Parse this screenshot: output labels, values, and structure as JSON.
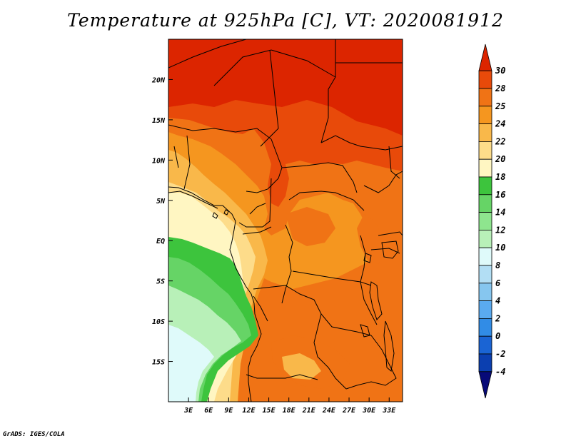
{
  "title": "Temperature at 925hPa [C], VT: 2020081912",
  "credit": "GrADS: IGES/COLA",
  "map": {
    "region": "Central Africa",
    "projection": "lat-lon",
    "lon_range": [
      0,
      35
    ],
    "lat_range": [
      -20,
      25
    ],
    "lon_ticks": [
      {
        "value": 3,
        "label": "3E"
      },
      {
        "value": 6,
        "label": "6E"
      },
      {
        "value": 9,
        "label": "9E"
      },
      {
        "value": 12,
        "label": "12E"
      },
      {
        "value": 15,
        "label": "15E"
      },
      {
        "value": 18,
        "label": "18E"
      },
      {
        "value": 21,
        "label": "21E"
      },
      {
        "value": 24,
        "label": "24E"
      },
      {
        "value": 27,
        "label": "27E"
      },
      {
        "value": 30,
        "label": "30E"
      },
      {
        "value": 33,
        "label": "33E"
      }
    ],
    "lat_ticks": [
      {
        "value": 20,
        "label": "20N"
      },
      {
        "value": 15,
        "label": "15N"
      },
      {
        "value": 10,
        "label": "10N"
      },
      {
        "value": 5,
        "label": "5N"
      },
      {
        "value": 0,
        "label": "EQ"
      },
      {
        "value": -5,
        "label": "5S"
      },
      {
        "value": -10,
        "label": "10S"
      },
      {
        "value": -15,
        "label": "15S"
      }
    ]
  },
  "colorbar": {
    "labels": [
      "30",
      "28",
      "25",
      "24",
      "22",
      "20",
      "18",
      "16",
      "14",
      "12",
      "10",
      "8",
      "6",
      "4",
      "2",
      "0",
      "-2",
      "-4"
    ],
    "colors": [
      "#dc2500",
      "#e84a0a",
      "#f07315",
      "#f5961f",
      "#f9b84a",
      "#fddc8a",
      "#fff6c2",
      "#3dc43d",
      "#66d466",
      "#8ee58e",
      "#b8f0b8",
      "#dffafa",
      "#b2def4",
      "#86c6ef",
      "#5aaaf0",
      "#318ce6",
      "#1a64d4",
      "#0b3fb0",
      "#070a78"
    ]
  }
}
